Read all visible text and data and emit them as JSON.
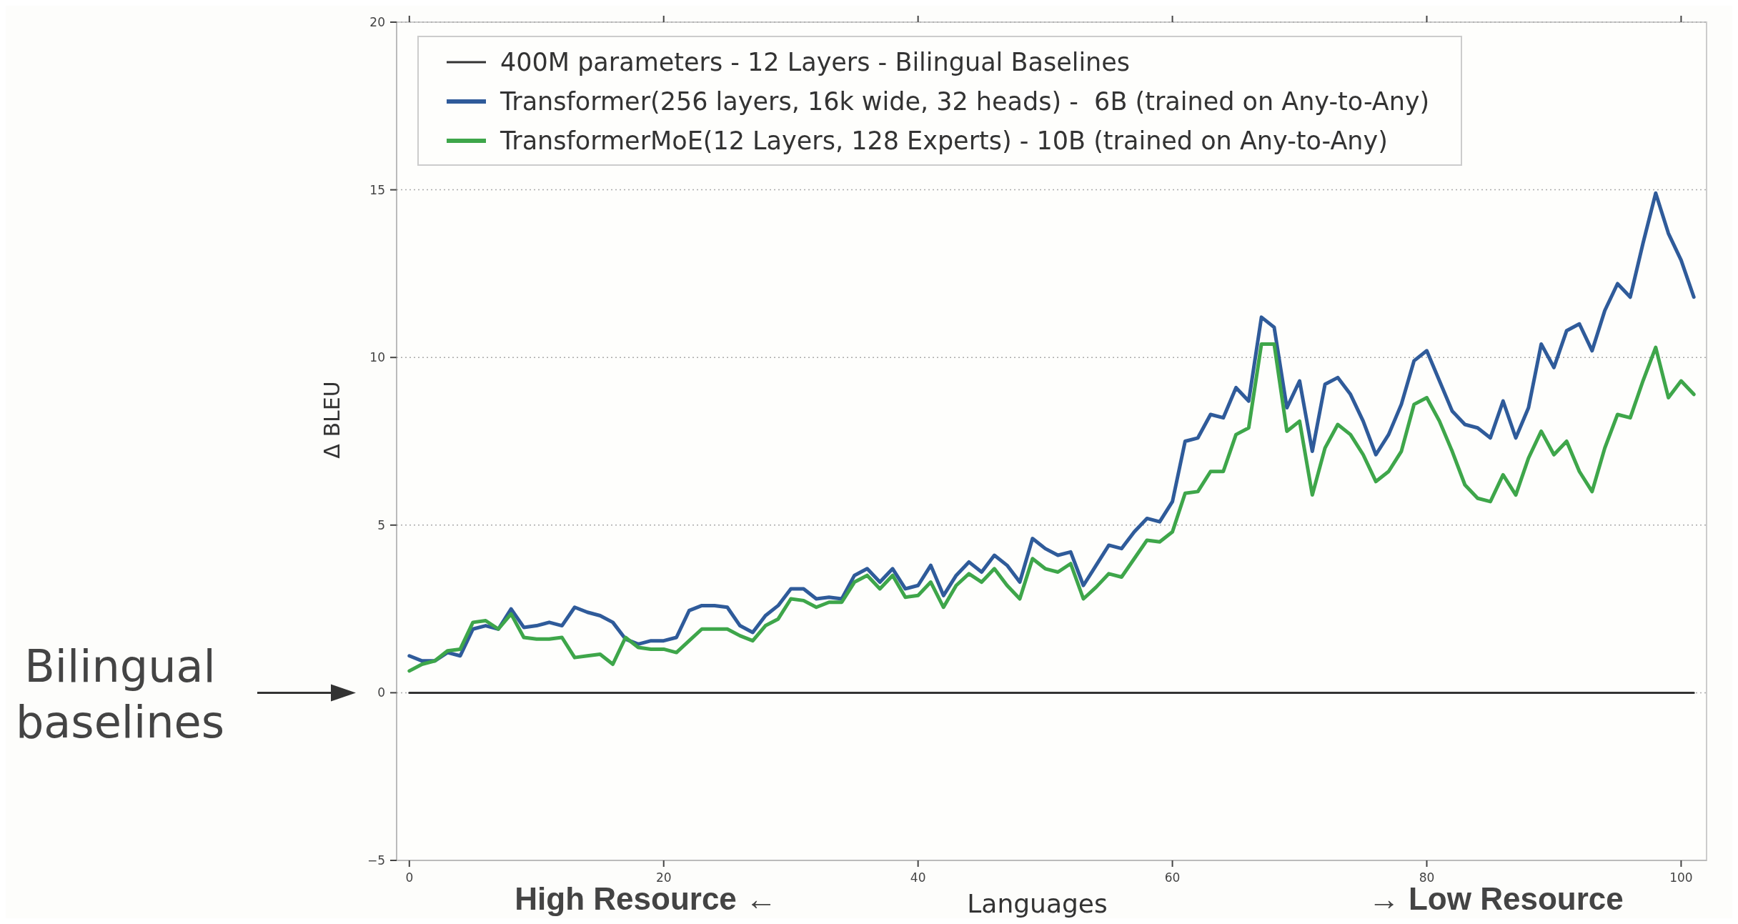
{
  "chart_data": {
    "type": "line",
    "xlabel": "Languages",
    "ylabel": "Δ BLEU",
    "xlim": [
      -1,
      102
    ],
    "ylim": [
      -5,
      20
    ],
    "xticks": [
      0,
      20,
      40,
      60,
      80,
      100
    ],
    "yticks": [
      -5,
      0,
      5,
      10,
      15,
      20
    ],
    "grid": "y",
    "legend": "top left",
    "marker": "none",
    "line_style": "solid",
    "annotations": [
      "Bilingual baselines",
      "High Resource ←",
      "→ Low Resource"
    ],
    "series": [
      {
        "name": "400M parameters - 12 Layers - Bilingual Baselines",
        "color": "#333333",
        "x": [
          0,
          101
        ],
        "values": [
          0,
          0
        ]
      },
      {
        "name": "Transformer(256 layers, 16k wide, 32 heads) -  6B (trained on Any-to-Any)",
        "color": "#2f5b9a",
        "x": [
          0,
          1,
          2,
          3,
          4,
          5,
          6,
          7,
          8,
          9,
          10,
          11,
          12,
          13,
          14,
          15,
          16,
          17,
          18,
          19,
          20,
          21,
          22,
          23,
          24,
          25,
          26,
          27,
          28,
          29,
          30,
          31,
          32,
          33,
          34,
          35,
          36,
          37,
          38,
          39,
          40,
          41,
          42,
          43,
          44,
          45,
          46,
          47,
          48,
          49,
          50,
          51,
          52,
          53,
          54,
          55,
          56,
          57,
          58,
          59,
          60,
          61,
          62,
          63,
          64,
          65,
          66,
          67,
          68,
          69,
          70,
          71,
          72,
          73,
          74,
          75,
          76,
          77,
          78,
          79,
          80,
          81,
          82,
          83,
          84,
          85,
          86,
          87,
          88,
          89,
          90,
          91,
          92,
          93,
          94,
          95,
          96,
          97,
          98,
          99,
          100,
          101
        ],
        "values": [
          1.1,
          0.95,
          0.95,
          1.2,
          1.1,
          1.9,
          2.0,
          1.9,
          2.5,
          1.95,
          2.0,
          2.1,
          2.0,
          2.55,
          2.4,
          2.3,
          2.1,
          1.6,
          1.45,
          1.55,
          1.55,
          1.65,
          2.45,
          2.6,
          2.6,
          2.55,
          2.0,
          1.8,
          2.3,
          2.6,
          3.1,
          3.1,
          2.8,
          2.85,
          2.8,
          3.5,
          3.7,
          3.3,
          3.7,
          3.1,
          3.2,
          3.8,
          2.9,
          3.5,
          3.9,
          3.6,
          4.1,
          3.8,
          3.3,
          4.6,
          4.3,
          4.1,
          4.2,
          3.2,
          3.8,
          4.4,
          4.3,
          4.8,
          5.2,
          5.1,
          5.7,
          7.5,
          7.6,
          8.3,
          8.2,
          9.1,
          8.7,
          11.2,
          10.9,
          8.5,
          9.3,
          7.2,
          9.2,
          9.4,
          8.9,
          8.1,
          7.1,
          7.7,
          8.6,
          9.9,
          10.2,
          9.3,
          8.4,
          8.0,
          7.9,
          7.6,
          8.7,
          7.6,
          8.5,
          10.4,
          9.7,
          10.8,
          11.0,
          10.2,
          11.4,
          12.2,
          11.8,
          13.4,
          14.9,
          13.7,
          12.9,
          11.8
        ]
      },
      {
        "name": "TransformerMoE(12 Layers, 128 Experts) - 10B (trained on Any-to-Any)",
        "color": "#3ea64a",
        "x": [
          0,
          1,
          2,
          3,
          4,
          5,
          6,
          7,
          8,
          9,
          10,
          11,
          12,
          13,
          14,
          15,
          16,
          17,
          18,
          19,
          20,
          21,
          22,
          23,
          24,
          25,
          26,
          27,
          28,
          29,
          30,
          31,
          32,
          33,
          34,
          35,
          36,
          37,
          38,
          39,
          40,
          41,
          42,
          43,
          44,
          45,
          46,
          47,
          48,
          49,
          50,
          51,
          52,
          53,
          54,
          55,
          56,
          57,
          58,
          59,
          60,
          61,
          62,
          63,
          64,
          65,
          66,
          67,
          68,
          69,
          70,
          71,
          72,
          73,
          74,
          75,
          76,
          77,
          78,
          79,
          80,
          81,
          82,
          83,
          84,
          85,
          86,
          87,
          88,
          89,
          90,
          91,
          92,
          93,
          94,
          95,
          96,
          97,
          98,
          99,
          100,
          101
        ],
        "values": [
          0.65,
          0.85,
          0.95,
          1.25,
          1.3,
          2.1,
          2.15,
          1.9,
          2.35,
          1.65,
          1.6,
          1.6,
          1.65,
          1.05,
          1.1,
          1.15,
          0.85,
          1.65,
          1.35,
          1.3,
          1.3,
          1.2,
          1.55,
          1.9,
          1.9,
          1.9,
          1.7,
          1.55,
          2.0,
          2.2,
          2.8,
          2.75,
          2.55,
          2.7,
          2.7,
          3.3,
          3.5,
          3.1,
          3.5,
          2.85,
          2.9,
          3.3,
          2.55,
          3.2,
          3.55,
          3.3,
          3.7,
          3.2,
          2.8,
          4.0,
          3.7,
          3.6,
          3.85,
          2.8,
          3.15,
          3.55,
          3.45,
          4.0,
          4.55,
          4.5,
          4.8,
          5.95,
          6.0,
          6.6,
          6.6,
          7.7,
          7.9,
          10.4,
          10.4,
          7.8,
          8.1,
          5.9,
          7.3,
          8.0,
          7.7,
          7.1,
          6.3,
          6.6,
          7.2,
          8.6,
          8.8,
          8.1,
          7.2,
          6.2,
          5.8,
          5.7,
          6.5,
          5.9,
          7.0,
          7.8,
          7.1,
          7.5,
          6.6,
          6.0,
          7.3,
          8.3,
          8.2,
          9.3,
          10.3,
          8.8,
          9.3,
          8.9
        ]
      }
    ]
  }
}
